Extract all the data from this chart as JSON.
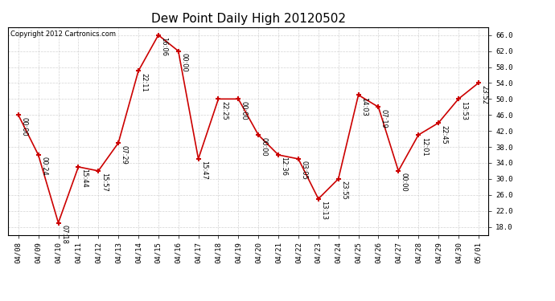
{
  "title": "Dew Point Daily High 20120502",
  "copyright": "Copyright 2012 Cartronics.com",
  "dates": [
    "04/08",
    "04/09",
    "04/10",
    "04/11",
    "04/12",
    "04/13",
    "04/14",
    "04/15",
    "04/16",
    "04/17",
    "04/18",
    "04/19",
    "04/20",
    "04/21",
    "04/22",
    "04/23",
    "04/24",
    "04/25",
    "04/26",
    "04/27",
    "04/28",
    "04/29",
    "04/30",
    "05/01"
  ],
  "values": [
    46,
    36,
    19,
    33,
    32,
    39,
    57,
    66,
    62,
    35,
    50,
    50,
    41,
    36,
    35,
    25,
    30,
    51,
    48,
    32,
    41,
    44,
    50,
    54
  ],
  "times": [
    "00:00",
    "00:24",
    "07:18",
    "15:44",
    "15:57",
    "07:29",
    "22:11",
    "16:06",
    "00:00",
    "15:47",
    "22:25",
    "00:00",
    "00:00",
    "12:36",
    "03:05",
    "13:13",
    "23:55",
    "14:03",
    "07:19",
    "00:00",
    "12:01",
    "22:45",
    "13:53",
    "23:52"
  ],
  "ylim_low": 16,
  "ylim_high": 68,
  "ytick_values": [
    18.0,
    22.0,
    26.0,
    30.0,
    34.0,
    38.0,
    42.0,
    46.0,
    50.0,
    54.0,
    58.0,
    62.0,
    66.0
  ],
  "line_color": "#cc0000",
  "marker_color": "#cc0000",
  "bg_color": "#ffffff",
  "grid_color": "#c8c8c8",
  "title_fontsize": 11,
  "tick_fontsize": 6.5,
  "annotation_fontsize": 6,
  "copyright_fontsize": 6
}
